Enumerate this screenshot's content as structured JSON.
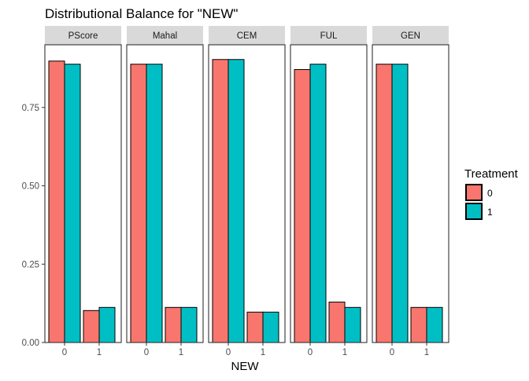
{
  "chart_data": {
    "type": "bar",
    "title": "Distributional Balance for \"NEW\"",
    "xlabel": "NEW",
    "ylabel": "",
    "ylim": [
      0,
      0.95
    ],
    "yticks": [
      "0.00",
      "0.25",
      "0.50",
      "0.75"
    ],
    "ytick_values": [
      0,
      0.25,
      0.5,
      0.75
    ],
    "categories": [
      "0",
      "1"
    ],
    "facets": [
      "PScore",
      "Mahal",
      "CEM",
      "FUL",
      "GEN"
    ],
    "series": [
      {
        "name": "0",
        "color": "#F8766D",
        "values": [
          [
            0.898,
            0.102
          ],
          [
            0.888,
            0.112
          ],
          [
            0.903,
            0.097
          ],
          [
            0.871,
            0.129
          ],
          [
            0.888,
            0.112
          ]
        ]
      },
      {
        "name": "1",
        "color": "#00BFC4",
        "values": [
          [
            0.888,
            0.112
          ],
          [
            0.888,
            0.112
          ],
          [
            0.903,
            0.097
          ],
          [
            0.888,
            0.112
          ],
          [
            0.888,
            0.112
          ]
        ]
      }
    ],
    "legend": {
      "title": "Treatment",
      "position": "right"
    },
    "grid": false,
    "strip_color": "#D9D9D9",
    "facet_label_note": "facet panel titles"
  }
}
